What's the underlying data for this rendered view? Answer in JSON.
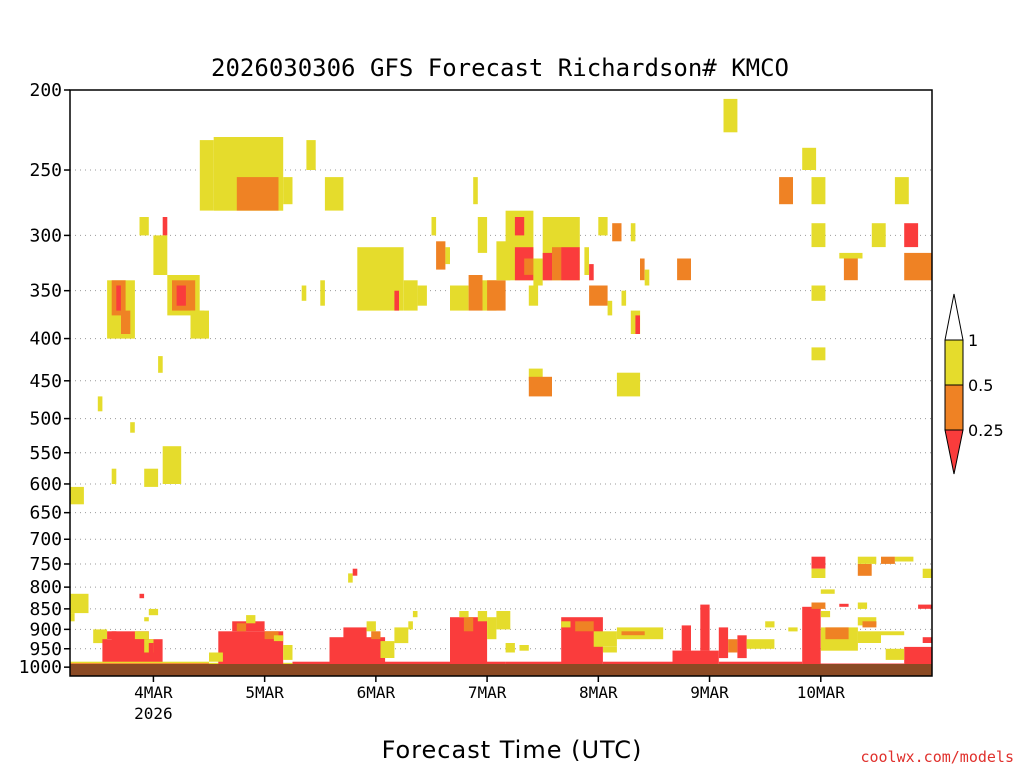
{
  "chart_data": {
    "type": "heatmap",
    "title": "2026030306 GFS Forecast Richardson# KMCO",
    "xlabel": "Forecast Time (UTC)",
    "ylabel": "",
    "credit": "coolwx.com/models",
    "x_ticks": [
      {
        "label": "4MAR",
        "sublabel": "2026",
        "hour": 18
      },
      {
        "label": "5MAR",
        "hour": 42
      },
      {
        "label": "6MAR",
        "hour": 66
      },
      {
        "label": "7MAR",
        "hour": 90
      },
      {
        "label": "8MAR",
        "hour": 114
      },
      {
        "label": "9MAR",
        "hour": 138
      },
      {
        "label": "10MAR",
        "hour": 162
      }
    ],
    "xlim": [
      0,
      186
    ],
    "y_ticks": [
      200,
      250,
      300,
      350,
      400,
      450,
      500,
      550,
      600,
      650,
      700,
      750,
      800,
      850,
      900,
      950,
      1000
    ],
    "ylim_hPa": [
      200,
      1025
    ],
    "y_scale": "log-pressure",
    "grid": "dotted horizontal at pressure levels",
    "legend": {
      "placement": "right",
      "labels": [
        "1",
        "0.5",
        "0.25"
      ],
      "bins": [
        {
          "range": "0.5-1",
          "color": "#e5dc2c"
        },
        {
          "range": "0.25-0.5",
          "color": "#ef8224"
        },
        {
          "range": "<0.25",
          "color": "#fa3c3c"
        }
      ]
    },
    "colors": {
      "yellow": "#e5dc2c",
      "orange": "#ef8224",
      "red": "#fa3c3c",
      "ground": "#8b4a24"
    },
    "regions": [
      {
        "c": "y",
        "h0": 0,
        "h1": 3,
        "p0": 605,
        "p1": 635
      },
      {
        "c": "y",
        "h0": 0,
        "h1": 4,
        "p0": 815,
        "p1": 860
      },
      {
        "c": "y",
        "h0": 6,
        "h1": 7,
        "p0": 470,
        "p1": 490
      },
      {
        "c": "y",
        "h0": 9,
        "h1": 10,
        "p0": 575,
        "p1": 600
      },
      {
        "c": "y",
        "h0": 13,
        "h1": 14,
        "p0": 505,
        "p1": 520
      },
      {
        "c": "y",
        "h0": 16,
        "h1": 19,
        "p0": 575,
        "p1": 605
      },
      {
        "c": "y",
        "h0": 20,
        "h1": 24,
        "p0": 540,
        "p1": 600
      },
      {
        "c": "y",
        "h0": 19,
        "h1": 20,
        "p0": 420,
        "p1": 440
      },
      {
        "c": "y",
        "h0": 8,
        "h1": 14,
        "p0": 340,
        "p1": 400
      },
      {
        "c": "o",
        "h0": 9,
        "h1": 12,
        "p0": 340,
        "p1": 375
      },
      {
        "c": "r",
        "h0": 10,
        "h1": 11,
        "p0": 345,
        "p1": 370
      },
      {
        "c": "o",
        "h0": 11,
        "h1": 13,
        "p0": 370,
        "p1": 395
      },
      {
        "c": "y",
        "h0": 15,
        "h1": 17,
        "p0": 285,
        "p1": 300
      },
      {
        "c": "r",
        "h0": 20,
        "h1": 21,
        "p0": 285,
        "p1": 300
      },
      {
        "c": "y",
        "h0": 18,
        "h1": 21,
        "p0": 300,
        "p1": 335
      },
      {
        "c": "y",
        "h0": 21,
        "h1": 28,
        "p0": 335,
        "p1": 375
      },
      {
        "c": "o",
        "h0": 22,
        "h1": 27,
        "p0": 340,
        "p1": 370
      },
      {
        "c": "r",
        "h0": 23,
        "h1": 25,
        "p0": 345,
        "p1": 365
      },
      {
        "c": "y",
        "h0": 26,
        "h1": 30,
        "p0": 370,
        "p1": 400
      },
      {
        "c": "y",
        "h0": 28,
        "h1": 29,
        "p0": 370,
        "p1": 395
      },
      {
        "c": "y",
        "h0": 28,
        "h1": 31,
        "p0": 230,
        "p1": 280
      },
      {
        "c": "y",
        "h0": 31,
        "h1": 46,
        "p0": 228,
        "p1": 280
      },
      {
        "c": "o",
        "h0": 36,
        "h1": 45,
        "p0": 255,
        "p1": 280
      },
      {
        "c": "y",
        "h0": 46,
        "h1": 48,
        "p0": 255,
        "p1": 275
      },
      {
        "c": "y",
        "h0": 51,
        "h1": 53,
        "p0": 230,
        "p1": 250
      },
      {
        "c": "y",
        "h0": 55,
        "h1": 59,
        "p0": 255,
        "p1": 280
      },
      {
        "c": "y",
        "h0": 50,
        "h1": 51,
        "p0": 345,
        "p1": 360
      },
      {
        "c": "y",
        "h0": 54,
        "h1": 55,
        "p0": 340,
        "p1": 365
      },
      {
        "c": "y",
        "h0": 62,
        "h1": 72,
        "p0": 310,
        "p1": 370
      },
      {
        "c": "y",
        "h0": 72,
        "h1": 75,
        "p0": 340,
        "p1": 370
      },
      {
        "c": "r",
        "h0": 70,
        "h1": 71,
        "p0": 350,
        "p1": 370
      },
      {
        "c": "y",
        "h0": 75,
        "h1": 77,
        "p0": 345,
        "p1": 365
      },
      {
        "c": "y",
        "h0": 78,
        "h1": 79,
        "p0": 285,
        "p1": 300
      },
      {
        "c": "o",
        "h0": 79,
        "h1": 81,
        "p0": 305,
        "p1": 330
      },
      {
        "c": "y",
        "h0": 81,
        "h1": 82,
        "p0": 310,
        "p1": 325
      },
      {
        "c": "y",
        "h0": 82,
        "h1": 86,
        "p0": 345,
        "p1": 370
      },
      {
        "c": "o",
        "h0": 86,
        "h1": 89,
        "p0": 335,
        "p1": 370
      },
      {
        "c": "y",
        "h0": 87,
        "h1": 88,
        "p0": 255,
        "p1": 275
      },
      {
        "c": "y",
        "h0": 88,
        "h1": 90,
        "p0": 285,
        "p1": 315
      },
      {
        "c": "y",
        "h0": 89,
        "h1": 92,
        "p0": 340,
        "p1": 370
      },
      {
        "c": "o",
        "h0": 90,
        "h1": 94,
        "p0": 340,
        "p1": 370
      },
      {
        "c": "y",
        "h0": 92,
        "h1": 95,
        "p0": 305,
        "p1": 340
      },
      {
        "c": "y",
        "h0": 94,
        "h1": 100,
        "p0": 280,
        "p1": 340
      },
      {
        "c": "r",
        "h0": 96,
        "h1": 98,
        "p0": 285,
        "p1": 300
      },
      {
        "c": "r",
        "h0": 96,
        "h1": 100,
        "p0": 310,
        "p1": 340
      },
      {
        "c": "o",
        "h0": 98,
        "h1": 100,
        "p0": 320,
        "p1": 335
      },
      {
        "c": "y",
        "h0": 100,
        "h1": 102,
        "p0": 320,
        "p1": 345
      },
      {
        "c": "y",
        "h0": 102,
        "h1": 110,
        "p0": 285,
        "p1": 340
      },
      {
        "c": "r",
        "h0": 102,
        "h1": 104,
        "p0": 315,
        "p1": 340
      },
      {
        "c": "o",
        "h0": 104,
        "h1": 106,
        "p0": 310,
        "p1": 340
      },
      {
        "c": "r",
        "h0": 106,
        "h1": 110,
        "p0": 310,
        "p1": 340
      },
      {
        "c": "y",
        "h0": 99,
        "h1": 101,
        "p0": 345,
        "p1": 365
      },
      {
        "c": "y",
        "h0": 111,
        "h1": 112,
        "p0": 310,
        "p1": 335
      },
      {
        "c": "r",
        "h0": 112,
        "h1": 113,
        "p0": 325,
        "p1": 340
      },
      {
        "c": "o",
        "h0": 112,
        "h1": 116,
        "p0": 345,
        "p1": 365
      },
      {
        "c": "y",
        "h0": 116,
        "h1": 117,
        "p0": 360,
        "p1": 375
      },
      {
        "c": "y",
        "h0": 114,
        "h1": 116,
        "p0": 285,
        "p1": 300
      },
      {
        "c": "o",
        "h0": 117,
        "h1": 119,
        "p0": 290,
        "p1": 305
      },
      {
        "c": "y",
        "h0": 119,
        "h1": 120,
        "p0": 350,
        "p1": 365
      },
      {
        "c": "y",
        "h0": 121,
        "h1": 122,
        "p0": 290,
        "p1": 305
      },
      {
        "c": "o",
        "h0": 123,
        "h1": 124,
        "p0": 320,
        "p1": 340
      },
      {
        "c": "y",
        "h0": 124,
        "h1": 125,
        "p0": 330,
        "p1": 345
      },
      {
        "c": "y",
        "h0": 121,
        "h1": 123,
        "p0": 370,
        "p1": 395
      },
      {
        "c": "r",
        "h0": 122,
        "h1": 123,
        "p0": 375,
        "p1": 395
      },
      {
        "c": "y",
        "h0": 118,
        "h1": 123,
        "p0": 440,
        "p1": 470
      },
      {
        "c": "y",
        "h0": 99,
        "h1": 102,
        "p0": 435,
        "p1": 450
      },
      {
        "c": "o",
        "h0": 99,
        "h1": 104,
        "p0": 445,
        "p1": 470
      },
      {
        "c": "o",
        "h0": 131,
        "h1": 134,
        "p0": 320,
        "p1": 340
      },
      {
        "c": "y",
        "h0": 141,
        "h1": 144,
        "p0": 205,
        "p1": 225
      },
      {
        "c": "o",
        "h0": 153,
        "h1": 156,
        "p0": 255,
        "p1": 275
      },
      {
        "c": "y",
        "h0": 158,
        "h1": 161,
        "p0": 235,
        "p1": 250
      },
      {
        "c": "y",
        "h0": 160,
        "h1": 163,
        "p0": 255,
        "p1": 275
      },
      {
        "c": "y",
        "h0": 160,
        "h1": 163,
        "p0": 290,
        "p1": 310
      },
      {
        "c": "y",
        "h0": 160,
        "h1": 163,
        "p0": 345,
        "p1": 360
      },
      {
        "c": "y",
        "h0": 160,
        "h1": 163,
        "p0": 410,
        "p1": 425
      },
      {
        "c": "o",
        "h0": 167,
        "h1": 170,
        "p0": 320,
        "p1": 340
      },
      {
        "c": "y",
        "h0": 166,
        "h1": 171,
        "p0": 315,
        "p1": 320
      },
      {
        "c": "y",
        "h0": 173,
        "h1": 176,
        "p0": 290,
        "p1": 310
      },
      {
        "c": "y",
        "h0": 178,
        "h1": 181,
        "p0": 255,
        "p1": 275
      },
      {
        "c": "r",
        "h0": 180,
        "h1": 183,
        "p0": 290,
        "p1": 310
      },
      {
        "c": "o",
        "h0": 180,
        "h1": 186,
        "p0": 315,
        "p1": 340
      },
      {
        "c": "y",
        "h0": 0,
        "h1": 1,
        "p0": 860,
        "p1": 880
      },
      {
        "c": "y",
        "h0": 5,
        "h1": 8,
        "p0": 900,
        "p1": 935
      },
      {
        "c": "r",
        "h0": 8,
        "h1": 10,
        "p0": 905,
        "p1": 925
      },
      {
        "c": "r",
        "h0": 7,
        "h1": 20,
        "p0": 925,
        "p1": 1015
      },
      {
        "c": "r",
        "h0": 9,
        "h1": 17,
        "p0": 905,
        "p1": 935
      },
      {
        "c": "y",
        "h0": 14,
        "h1": 17,
        "p0": 905,
        "p1": 925
      },
      {
        "c": "y",
        "h0": 16,
        "h1": 18,
        "p0": 925,
        "p1": 960
      },
      {
        "c": "r",
        "h0": 17,
        "h1": 18,
        "p0": 935,
        "p1": 960
      },
      {
        "c": "y",
        "h0": 17,
        "h1": 19,
        "p0": 850,
        "p1": 865
      },
      {
        "c": "y",
        "h0": 16,
        "h1": 17,
        "p0": 870,
        "p1": 880
      },
      {
        "c": "r",
        "h0": 15,
        "h1": 16,
        "p0": 815,
        "p1": 825
      },
      {
        "c": "y",
        "h0": 0,
        "h1": 30,
        "p0": 985,
        "p1": 995
      },
      {
        "c": "r",
        "h0": 0,
        "h1": 30,
        "p0": 990,
        "p1": 1013
      },
      {
        "c": "y",
        "h0": 30,
        "h1": 48,
        "p0": 988,
        "p1": 997
      },
      {
        "c": "r",
        "h0": 32,
        "h1": 46,
        "p0": 905,
        "p1": 1008
      },
      {
        "c": "r",
        "h0": 35,
        "h1": 42,
        "p0": 880,
        "p1": 905
      },
      {
        "c": "o",
        "h0": 36,
        "h1": 38,
        "p0": 885,
        "p1": 905
      },
      {
        "c": "y",
        "h0": 38,
        "h1": 40,
        "p0": 865,
        "p1": 885
      },
      {
        "c": "o",
        "h0": 42,
        "h1": 45,
        "p0": 905,
        "p1": 925
      },
      {
        "c": "y",
        "h0": 44,
        "h1": 46,
        "p0": 915,
        "p1": 930
      },
      {
        "c": "y",
        "h0": 46,
        "h1": 48,
        "p0": 940,
        "p1": 980
      },
      {
        "c": "y",
        "h0": 30,
        "h1": 33,
        "p0": 960,
        "p1": 985
      },
      {
        "c": "r",
        "h0": 48,
        "h1": 60,
        "p0": 985,
        "p1": 1005
      },
      {
        "c": "r",
        "h0": 56,
        "h1": 68,
        "p0": 920,
        "p1": 1005
      },
      {
        "c": "r",
        "h0": 59,
        "h1": 64,
        "p0": 895,
        "p1": 925
      },
      {
        "c": "y",
        "h0": 64,
        "h1": 66,
        "p0": 880,
        "p1": 905
      },
      {
        "c": "o",
        "h0": 65,
        "h1": 67,
        "p0": 905,
        "p1": 925
      },
      {
        "c": "y",
        "h0": 67,
        "h1": 70,
        "p0": 930,
        "p1": 975
      },
      {
        "c": "y",
        "h0": 70,
        "h1": 73,
        "p0": 895,
        "p1": 935
      },
      {
        "c": "y",
        "h0": 73,
        "h1": 74,
        "p0": 880,
        "p1": 900
      },
      {
        "c": "y",
        "h0": 74,
        "h1": 75,
        "p0": 855,
        "p1": 870
      },
      {
        "c": "y",
        "h0": 60,
        "h1": 61,
        "p0": 770,
        "p1": 790
      },
      {
        "c": "r",
        "h0": 61,
        "h1": 62,
        "p0": 760,
        "p1": 775
      },
      {
        "c": "r",
        "h0": 66,
        "h1": 82,
        "p0": 985,
        "p1": 1005
      },
      {
        "c": "r",
        "h0": 82,
        "h1": 94,
        "p0": 985,
        "p1": 1003
      },
      {
        "c": "r",
        "h0": 82,
        "h1": 90,
        "p0": 870,
        "p1": 1000
      },
      {
        "c": "o",
        "h0": 85,
        "h1": 87,
        "p0": 870,
        "p1": 905
      },
      {
        "c": "y",
        "h0": 84,
        "h1": 86,
        "p0": 855,
        "p1": 870
      },
      {
        "c": "y",
        "h0": 88,
        "h1": 90,
        "p0": 855,
        "p1": 880
      },
      {
        "c": "y",
        "h0": 90,
        "h1": 92,
        "p0": 870,
        "p1": 925
      },
      {
        "c": "y",
        "h0": 92,
        "h1": 95,
        "p0": 855,
        "p1": 900
      },
      {
        "c": "y",
        "h0": 94,
        "h1": 96,
        "p0": 935,
        "p1": 960
      },
      {
        "c": "y",
        "h0": 97,
        "h1": 99,
        "p0": 940,
        "p1": 955
      },
      {
        "c": "r",
        "h0": 94,
        "h1": 112,
        "p0": 985,
        "p1": 1005
      },
      {
        "c": "r",
        "h0": 106,
        "h1": 115,
        "p0": 870,
        "p1": 1000
      },
      {
        "c": "o",
        "h0": 109,
        "h1": 113,
        "p0": 880,
        "p1": 905
      },
      {
        "c": "y",
        "h0": 106,
        "h1": 108,
        "p0": 880,
        "p1": 895
      },
      {
        "c": "y",
        "h0": 113,
        "h1": 118,
        "p0": 905,
        "p1": 945
      },
      {
        "c": "y",
        "h0": 118,
        "h1": 128,
        "p0": 895,
        "p1": 925
      },
      {
        "c": "o",
        "h0": 119,
        "h1": 124,
        "p0": 905,
        "p1": 915
      },
      {
        "c": "y",
        "h0": 115,
        "h1": 118,
        "p0": 945,
        "p1": 960
      },
      {
        "c": "r",
        "h0": 115,
        "h1": 130,
        "p0": 985,
        "p1": 1005
      },
      {
        "c": "r",
        "h0": 130,
        "h1": 140,
        "p0": 955,
        "p1": 1008
      },
      {
        "c": "r",
        "h0": 132,
        "h1": 134,
        "p0": 890,
        "p1": 955
      },
      {
        "c": "r",
        "h0": 136,
        "h1": 138,
        "p0": 840,
        "p1": 955
      },
      {
        "c": "r",
        "h0": 140,
        "h1": 142,
        "p0": 895,
        "p1": 975
      },
      {
        "c": "o",
        "h0": 142,
        "h1": 144,
        "p0": 925,
        "p1": 960
      },
      {
        "c": "r",
        "h0": 144,
        "h1": 146,
        "p0": 915,
        "p1": 975
      },
      {
        "c": "y",
        "h0": 146,
        "h1": 152,
        "p0": 925,
        "p1": 950
      },
      {
        "c": "y",
        "h0": 150,
        "h1": 152,
        "p0": 880,
        "p1": 895
      },
      {
        "c": "y",
        "h0": 155,
        "h1": 157,
        "p0": 895,
        "p1": 905
      },
      {
        "c": "r",
        "h0": 140,
        "h1": 158,
        "p0": 985,
        "p1": 1008
      },
      {
        "c": "r",
        "h0": 158,
        "h1": 162,
        "p0": 845,
        "p1": 1008
      },
      {
        "c": "o",
        "h0": 160,
        "h1": 163,
        "p0": 835,
        "p1": 850
      },
      {
        "c": "y",
        "h0": 162,
        "h1": 164,
        "p0": 855,
        "p1": 870
      },
      {
        "c": "y",
        "h0": 162,
        "h1": 170,
        "p0": 895,
        "p1": 955
      },
      {
        "c": "o",
        "h0": 163,
        "h1": 168,
        "p0": 895,
        "p1": 925
      },
      {
        "c": "y",
        "h0": 162,
        "h1": 165,
        "p0": 805,
        "p1": 815
      },
      {
        "c": "r",
        "h0": 166,
        "h1": 168,
        "p0": 838,
        "p1": 845
      },
      {
        "c": "r",
        "h0": 160,
        "h1": 163,
        "p0": 735,
        "p1": 760
      },
      {
        "c": "y",
        "h0": 160,
        "h1": 163,
        "p0": 760,
        "p1": 780
      },
      {
        "c": "y",
        "h0": 170,
        "h1": 174,
        "p0": 735,
        "p1": 750
      },
      {
        "c": "o",
        "h0": 170,
        "h1": 173,
        "p0": 750,
        "p1": 775
      },
      {
        "c": "o",
        "h0": 175,
        "h1": 178,
        "p0": 735,
        "p1": 750
      },
      {
        "c": "y",
        "h0": 178,
        "h1": 182,
        "p0": 735,
        "p1": 745
      },
      {
        "c": "y",
        "h0": 184,
        "h1": 186,
        "p0": 760,
        "p1": 780
      },
      {
        "c": "y",
        "h0": 170,
        "h1": 172,
        "p0": 835,
        "p1": 850
      },
      {
        "c": "y",
        "h0": 170,
        "h1": 174,
        "p0": 870,
        "p1": 890
      },
      {
        "c": "o",
        "h0": 171,
        "h1": 174,
        "p0": 880,
        "p1": 895
      },
      {
        "c": "y",
        "h0": 170,
        "h1": 175,
        "p0": 905,
        "p1": 935
      },
      {
        "c": "y",
        "h0": 175,
        "h1": 180,
        "p0": 905,
        "p1": 915
      },
      {
        "c": "r",
        "h0": 183,
        "h1": 186,
        "p0": 840,
        "p1": 850
      },
      {
        "c": "r",
        "h0": 184,
        "h1": 186,
        "p0": 920,
        "p1": 935
      },
      {
        "c": "r",
        "h0": 180,
        "h1": 186,
        "p0": 945,
        "p1": 1005
      },
      {
        "c": "y",
        "h0": 176,
        "h1": 180,
        "p0": 950,
        "p1": 980
      },
      {
        "c": "r",
        "h0": 158,
        "h1": 180,
        "p0": 990,
        "p1": 1008
      }
    ]
  }
}
